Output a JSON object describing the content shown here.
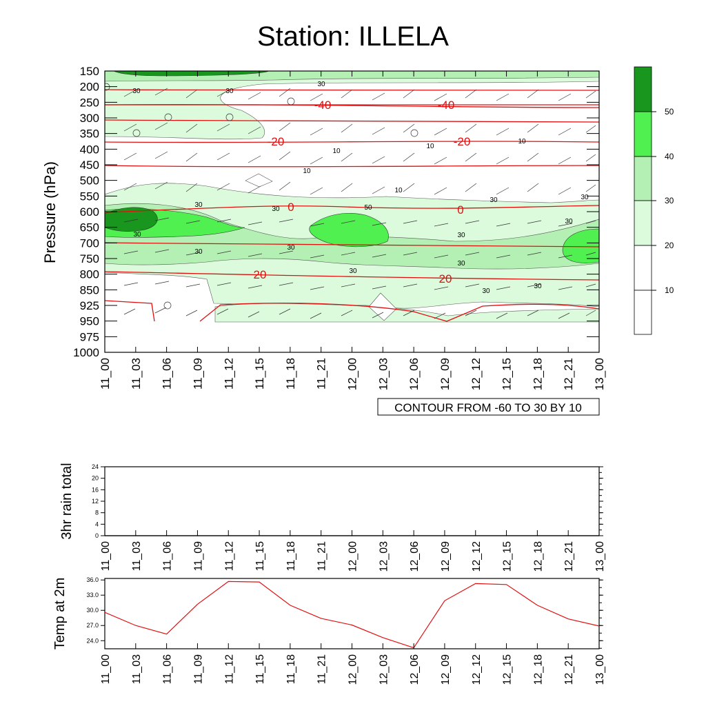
{
  "title": "Station: ILLELA",
  "time_labels": [
    "11_00",
    "11_03",
    "11_06",
    "11_09",
    "11_12",
    "11_15",
    "11_18",
    "11_21",
    "12_00",
    "12_03",
    "12_06",
    "12_09",
    "12_12",
    "12_15",
    "12_18",
    "12_21",
    "13_00"
  ],
  "colors": {
    "shade_10_20": "#ffffff",
    "shade_20_30": "#dcfadc",
    "shade_30_40": "#b4f0b4",
    "shade_40_50": "#50f050",
    "shade_50_plus": "#19961e",
    "temp_contour": "#e01010",
    "line": "#000000"
  },
  "chart_data": [
    {
      "type": "heatmap",
      "ylabel": "Pressure (hPa)",
      "pressure_levels": [
        150,
        200,
        250,
        300,
        350,
        400,
        450,
        500,
        550,
        600,
        650,
        700,
        750,
        800,
        850,
        925,
        950,
        975,
        1000
      ],
      "yaxis_inverted": true,
      "contour_info": "CONTOUR FROM -60 TO 30 BY 10",
      "colorbar": {
        "levels": [
          10,
          20,
          30,
          40,
          50
        ]
      },
      "temperature_contours": [
        {
          "value": -40,
          "labels": [
            "-40",
            "-40"
          ],
          "pressure": 260
        },
        {
          "value": -20,
          "labels": [
            "-20",
            "-20"
          ],
          "pressure": 375
        },
        {
          "value": 0,
          "labels": [
            "0",
            "0"
          ],
          "pressure": 600
        },
        {
          "value": 20,
          "labels": [
            "20",
            "20"
          ],
          "pressure": 800
        }
      ],
      "rh_contour_labels": [
        "30",
        "30",
        "30",
        "10",
        "10",
        "10",
        "10",
        "10",
        "30",
        "30",
        "30",
        "30",
        "50",
        "30",
        "30",
        "30",
        "30",
        "30",
        "30",
        "30",
        "30",
        "30"
      ]
    },
    {
      "type": "line",
      "ylabel": "3hr rain total",
      "y_ticks": [
        0,
        4,
        8,
        12,
        16,
        20,
        24
      ],
      "ylim": [
        0,
        24
      ],
      "values": [
        0,
        0,
        0,
        0,
        0,
        0,
        0,
        0,
        0,
        0,
        0,
        0,
        0,
        0,
        0,
        0,
        0
      ]
    },
    {
      "type": "line",
      "ylabel": "Temp at 2m",
      "y_ticks": [
        "24.0",
        "27.0",
        "30.0",
        "33.0",
        "36.0"
      ],
      "ylim": [
        22.4,
        36.3
      ],
      "values": [
        29.6,
        27.0,
        25.3,
        31.2,
        35.7,
        35.6,
        31.0,
        28.4,
        27.1,
        24.6,
        22.6,
        31.9,
        35.3,
        35.1,
        31.0,
        28.3,
        26.9
      ]
    }
  ]
}
